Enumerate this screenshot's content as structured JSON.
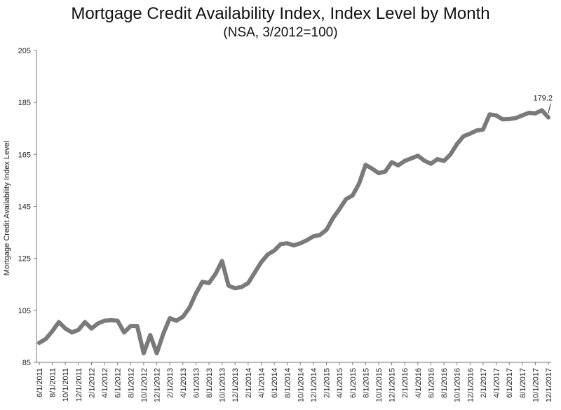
{
  "chart_data": {
    "type": "line",
    "title": "Mortgage Credit Availability Index, Index Level by Month",
    "subtitle": "(NSA, 3/2012=100)",
    "ylabel": "Mortgage Credit Availability Index Level",
    "xlabel": "",
    "ylim": [
      85,
      205
    ],
    "yticks": [
      85,
      105,
      125,
      145,
      165,
      185,
      205
    ],
    "xtick_labels": [
      "6/1/2011",
      "8/1/2011",
      "10/1/2011",
      "12/1/2011",
      "2/1/2012",
      "4/1/2012",
      "6/1/2012",
      "8/1/2012",
      "10/1/2012",
      "12/1/2012",
      "2/1/2013",
      "4/1/2013",
      "6/1/2013",
      "8/1/2013",
      "10/1/2013",
      "12/1/2013",
      "2/1/2014",
      "4/1/2014",
      "6/1/2014",
      "8/1/2014",
      "10/1/2014",
      "12/1/2014",
      "2/1/2015",
      "4/1/2015",
      "6/1/2015",
      "8/1/2015",
      "10/1/2015",
      "12/1/2015",
      "2/1/2016",
      "4/1/2016",
      "6/1/2016",
      "8/1/2016",
      "10/1/2016",
      "12/1/2016",
      "2/1/2017",
      "4/1/2017",
      "6/1/2017",
      "8/1/2017",
      "10/1/2017",
      "12/1/2017"
    ],
    "x": [
      "6/1/2011",
      "7/1/2011",
      "8/1/2011",
      "9/1/2011",
      "10/1/2011",
      "11/1/2011",
      "12/1/2011",
      "1/1/2012",
      "2/1/2012",
      "3/1/2012",
      "4/1/2012",
      "5/1/2012",
      "6/1/2012",
      "7/1/2012",
      "8/1/2012",
      "9/1/2012",
      "10/1/2012",
      "11/1/2012",
      "12/1/2012",
      "1/1/2013",
      "2/1/2013",
      "3/1/2013",
      "4/1/2013",
      "5/1/2013",
      "6/1/2013",
      "7/1/2013",
      "8/1/2013",
      "9/1/2013",
      "10/1/2013",
      "11/1/2013",
      "12/1/2013",
      "1/1/2014",
      "2/1/2014",
      "3/1/2014",
      "4/1/2014",
      "5/1/2014",
      "6/1/2014",
      "7/1/2014",
      "8/1/2014",
      "9/1/2014",
      "10/1/2014",
      "11/1/2014",
      "12/1/2014",
      "1/1/2015",
      "2/1/2015",
      "3/1/2015",
      "4/1/2015",
      "5/1/2015",
      "6/1/2015",
      "7/1/2015",
      "8/1/2015",
      "9/1/2015",
      "10/1/2015",
      "11/1/2015",
      "12/1/2015",
      "1/1/2016",
      "2/1/2016",
      "3/1/2016",
      "4/1/2016",
      "5/1/2016",
      "6/1/2016",
      "7/1/2016",
      "8/1/2016",
      "9/1/2016",
      "10/1/2016",
      "11/1/2016",
      "12/1/2016",
      "1/1/2017",
      "2/1/2017",
      "3/1/2017",
      "4/1/2017",
      "5/1/2017",
      "6/1/2017",
      "7/1/2017",
      "8/1/2017",
      "9/1/2017",
      "10/1/2017",
      "11/1/2017",
      "12/1/2017"
    ],
    "series": [
      {
        "values": [
          92.5,
          94.0,
          97.0,
          100.5,
          98.0,
          96.5,
          97.5,
          100.5,
          98.0,
          100.0,
          101.0,
          101.2,
          101.0,
          96.5,
          99.0,
          99.0,
          88.5,
          95.5,
          88.5,
          96.0,
          102.0,
          101.0,
          102.5,
          106.0,
          111.5,
          116.0,
          115.5,
          119.0,
          124.0,
          114.5,
          113.5,
          114.0,
          115.5,
          119.5,
          123.5,
          126.5,
          128.0,
          130.5,
          130.8,
          130.0,
          130.8,
          132.0,
          133.5,
          134.0,
          136.0,
          140.5,
          144.0,
          147.8,
          149.2,
          153.8,
          161.0,
          159.5,
          157.8,
          158.4,
          162.0,
          160.8,
          162.5,
          163.5,
          164.5,
          162.6,
          161.4,
          163.2,
          162.5,
          165.0,
          169.0,
          172.0,
          173.0,
          174.2,
          174.6,
          180.4,
          180.0,
          178.5,
          178.6,
          179.0,
          180.0,
          181.0,
          180.8,
          182.0,
          179.2
        ]
      }
    ],
    "annotations": [
      {
        "label": "179.2",
        "at": "12/1/2017"
      }
    ],
    "grid": false,
    "line_color": "#7a7a7a"
  }
}
